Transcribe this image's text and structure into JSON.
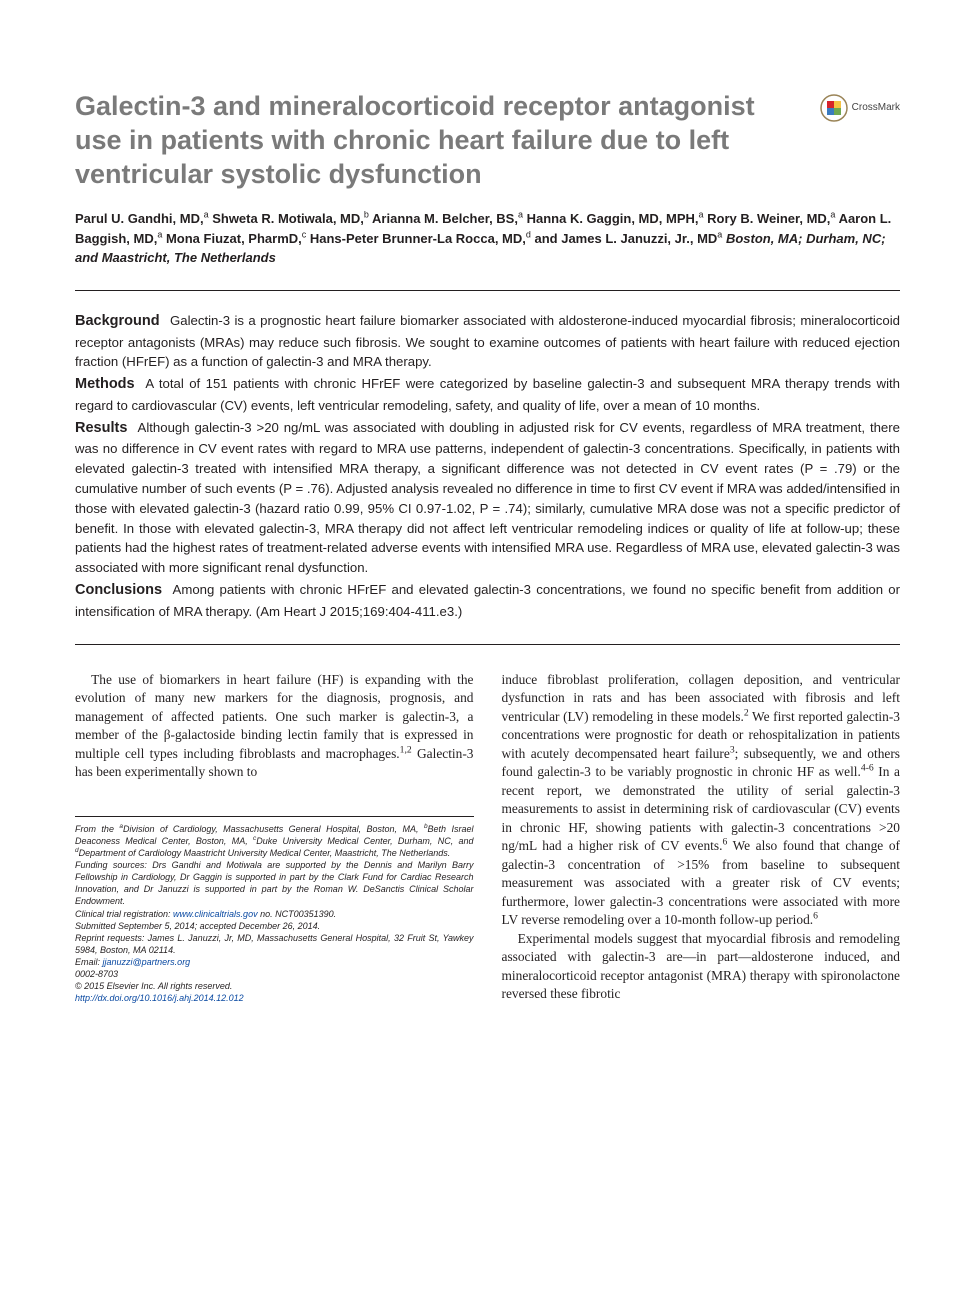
{
  "header": {
    "title": "Galectin-3 and mineralocorticoid receptor antagonist use in patients with chronic heart failure due to left ventricular systolic dysfunction",
    "crossmark_label": "CrossMark"
  },
  "authors_html": "Parul U. Gandhi, MD,<sup>a</sup> Shweta R. Motiwala, MD,<sup>b</sup> Arianna M. Belcher, BS,<sup>a</sup> Hanna K. Gaggin, MD, MPH,<sup>a</sup> Rory B. Weiner, MD,<sup>a</sup> Aaron L. Baggish, MD,<sup>a</sup> Mona Fiuzat, PharmD,<sup>c</sup> Hans-Peter Brunner-La Rocca, MD,<sup>d</sup> and James L. Januzzi, Jr., MD<sup>a</sup> <span class=\"affil-inline\">Boston, MA; Durham, NC; and Maastricht, The Netherlands</span>",
  "abstract": {
    "background": {
      "head": "Background",
      "text": "Galectin-3 is a prognostic heart failure biomarker associated with aldosterone-induced myocardial fibrosis; mineralocorticoid receptor antagonists (MRAs) may reduce such fibrosis. We sought to examine outcomes of patients with heart failure with reduced ejection fraction (HFrEF) as a function of galectin-3 and MRA therapy."
    },
    "methods": {
      "head": "Methods",
      "text": "A total of 151 patients with chronic HFrEF were categorized by baseline galectin-3 and subsequent MRA therapy trends with regard to cardiovascular (CV) events, left ventricular remodeling, safety, and quality of life, over a mean of 10 months."
    },
    "results": {
      "head": "Results",
      "text": "Although galectin-3 >20 ng/mL was associated with doubling in adjusted risk for CV events, regardless of MRA treatment, there was no difference in CV event rates with regard to MRA use patterns, independent of galectin-3 concentrations. Specifically, in patients with elevated galectin-3 treated with intensified MRA therapy, a significant difference was not detected in CV event rates (P = .79) or the cumulative number of such events (P = .76). Adjusted analysis revealed no difference in time to first CV event if MRA was added/intensified in those with elevated galectin-3 (hazard ratio 0.99, 95% CI 0.97-1.02, P = .74); similarly, cumulative MRA dose was not a specific predictor of benefit. In those with elevated galectin-3, MRA therapy did not affect left ventricular remodeling indices or quality of life at follow-up; these patients had the highest rates of treatment-related adverse events with intensified MRA use. Regardless of MRA use, elevated galectin-3 was associated with more significant renal dysfunction."
    },
    "conclusions": {
      "head": "Conclusions",
      "text": "Among patients with chronic HFrEF and elevated galectin-3 concentrations, we found no specific benefit from addition or intensification of MRA therapy. (Am Heart J 2015;169:404-411.e3.)"
    }
  },
  "body": {
    "left_para_html": "The use of biomarkers in heart failure (HF) is expanding with the evolution of many new markers for the diagnosis, prognosis, and management of affected patients. One such marker is galectin-3, a member of the β-galactoside binding lectin family that is expressed in multiple cell types including fibroblasts and macrophages.<sup>1,2</sup> Galectin-3 has been experimentally shown to",
    "right_para1_html": "induce fibroblast proliferation, collagen deposition, and ventricular dysfunction in rats and has been associated with fibrosis and left ventricular (LV) remodeling in these models.<sup>2</sup> We first reported galectin-3 concentrations were prognostic for death or rehospitalization in patients with acutely decompensated heart failure<sup>3</sup>; subsequently, we and others found galectin-3 to be variably prognostic in chronic HF as well.<sup>4-6</sup> In a recent report, we demonstrated the utility of serial galectin-3 measurements to assist in determining risk of cardiovascular (CV) events in chronic HF, showing patients with galectin-3 concentrations >20 ng/mL had a higher risk of CV events.<sup>6</sup> We also found that change of galectin-3 concentration of >15% from baseline to subsequent measurement was associated with a greater risk of CV events; furthermore, lower galectin-3 concentrations were associated with more LV reverse remodeling over a 10-month follow-up period.<sup>6</sup>",
    "right_para2_html": "Experimental models suggest that myocardial fibrosis and remodeling associated with galectin-3 are—in part—aldosterone induced, and mineralocorticoid receptor antagonist (MRA) therapy with spironolactone reversed these fibrotic"
  },
  "footnotes": {
    "affil_html": "From the <sup>a</sup>Division of Cardiology, Massachusetts General Hospital, Boston, MA, <sup>b</sup>Beth Israel Deaconess Medical Center, Boston, MA, <sup>c</sup>Duke University Medical Center, Durham, NC, and <sup>d</sup>Department of Cardiology Maastricht University Medical Center, Maastricht, The Netherlands.",
    "funding": "Funding sources: Drs Gandhi and Motiwala are supported by the Dennis and Marilyn Barry Fellowship in Cardiology, Dr Gaggin is supported in part by the Clark Fund for Cardiac Research Innovation, and Dr Januzzi is supported in part by the Roman W. DeSanctis Clinical Scholar Endowment.",
    "trial_label": "Clinical trial registration: ",
    "trial_link_text": "www.clinicaltrials.gov",
    "trial_tail": " no. NCT00351390.",
    "submitted": "Submitted September 5, 2014; accepted December 26, 2014.",
    "reprint": "Reprint requests: James L. Januzzi, Jr, MD, Massachusetts General Hospital, 32 Fruit St, Yawkey 5984, Boston, MA 02114.",
    "email_label": "Email: ",
    "email_link": "jjanuzzi@partners.org",
    "issn": "0002-8703",
    "copyright": "© 2015 Elsevier Inc. All rights reserved.",
    "doi_link": "http://dx.doi.org/10.1016/j.ahj.2014.12.012"
  },
  "colors": {
    "title_gray": "#7a7a7a",
    "text": "#231f20",
    "link_blue": "#0b4aa2",
    "crossmark_border": "#9a8457",
    "crossmark_red": "#d6232a",
    "crossmark_yellow": "#f6c344",
    "crossmark_blue": "#3a7bbf",
    "crossmark_green": "#6ea84f"
  }
}
